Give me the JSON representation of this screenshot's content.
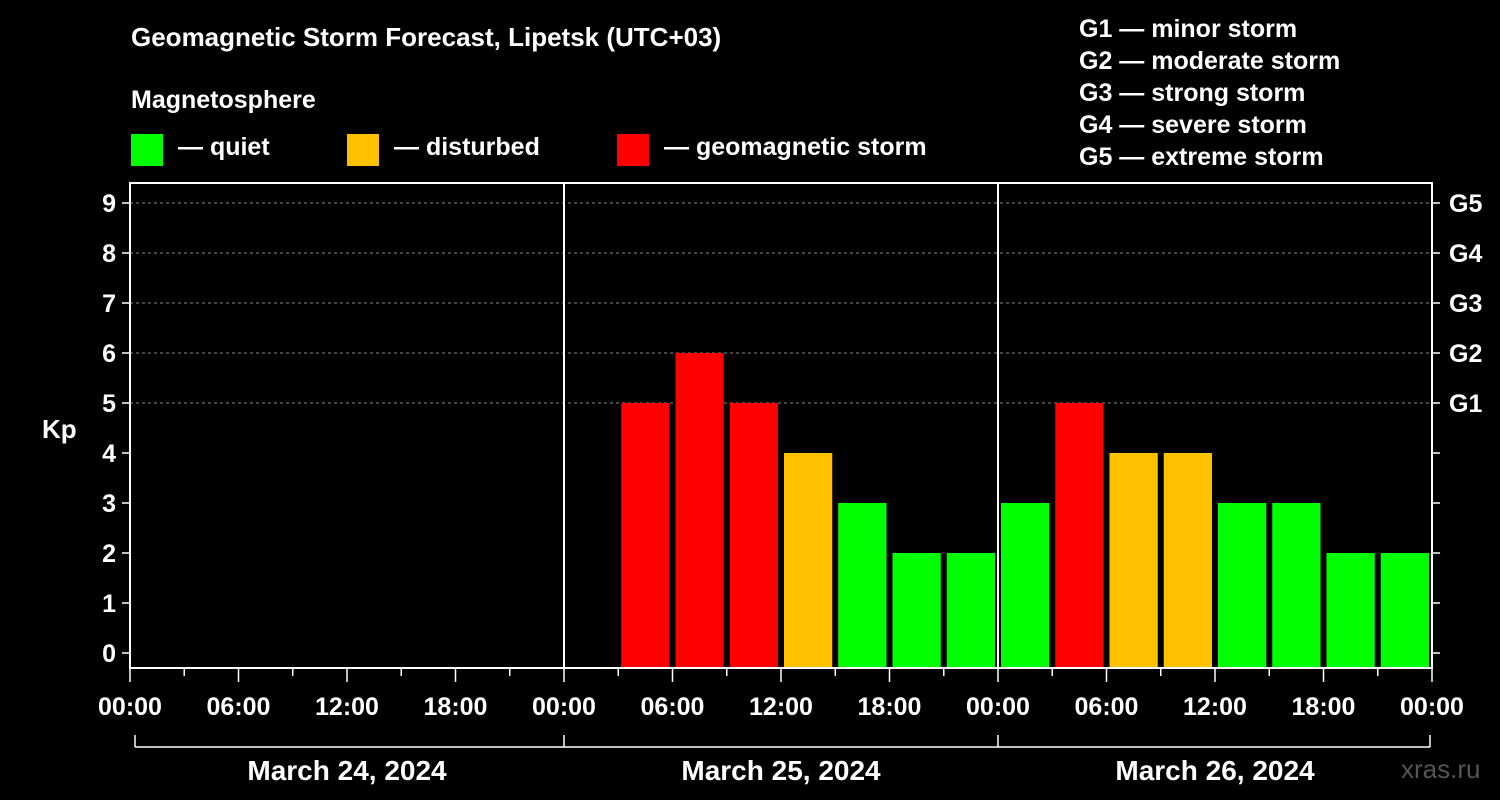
{
  "header": {
    "title": "Geomagnetic Storm Forecast, Lipetsk (UTC+03)",
    "subtitle": "Magnetosphere"
  },
  "legend": [
    {
      "label": "— quiet",
      "color": "#00ff00"
    },
    {
      "label": "— disturbed",
      "color": "#ffc000"
    },
    {
      "label": "— geomagnetic storm",
      "color": "#ff0000"
    }
  ],
  "g_levels": [
    "G1 — minor storm",
    "G2 — moderate storm",
    "G3 — strong storm",
    "G4 — severe storm",
    "G5 — extreme storm"
  ],
  "watermark": "xras.ru",
  "chart_data": {
    "type": "bar",
    "ylabel": "Kp",
    "ylim": [
      -0.3,
      9.4
    ],
    "y_ticks": [
      "0",
      "1",
      "2",
      "3",
      "4",
      "5",
      "6",
      "7",
      "8",
      "9"
    ],
    "right_ticks": [
      {
        "kp": 5,
        "label": "G1"
      },
      {
        "kp": 6,
        "label": "G2"
      },
      {
        "kp": 7,
        "label": "G3"
      },
      {
        "kp": 8,
        "label": "G4"
      },
      {
        "kp": 9,
        "label": "G5"
      }
    ],
    "grid": "dashed horizontal lines at Kp 5-9",
    "days": [
      "March 24, 2024",
      "March 25, 2024",
      "March 26, 2024"
    ],
    "x_tick_labels": [
      "00:00",
      "06:00",
      "12:00",
      "18:00",
      "00:00",
      "06:00",
      "12:00",
      "18:00",
      "00:00",
      "06:00",
      "12:00",
      "18:00",
      "00:00"
    ],
    "interval_hours": 3,
    "colors": {
      "quiet": "#00ff00",
      "disturbed": "#ffc000",
      "storm": "#ff0000"
    },
    "series": [
      {
        "day": "March 24, 2024",
        "values": [
          null,
          null,
          null,
          null,
          null,
          null,
          null,
          null
        ]
      },
      {
        "day": "March 25, 2024",
        "values": [
          null,
          5,
          6,
          5,
          4,
          3,
          2,
          2
        ]
      },
      {
        "day": "March 26, 2024",
        "values": [
          3,
          5,
          4,
          4,
          3,
          3,
          2,
          2
        ]
      }
    ]
  }
}
